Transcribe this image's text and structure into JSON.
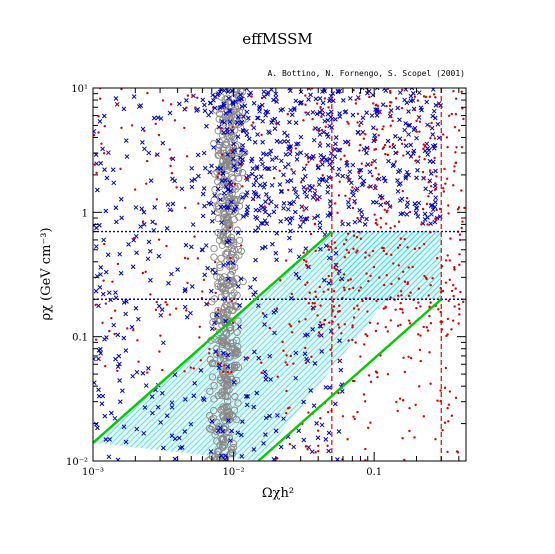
{
  "chart_data": {
    "type": "scatter",
    "title": "effMSSM",
    "subtitle": "A. Bottino, N. Fornengo, S. Scopel (2001)",
    "xlabel": "Ωχh²",
    "ylabel": "ρχ (GeV cm⁻³)",
    "xscale": "log",
    "yscale": "log",
    "xlim": [
      0.001,
      0.45
    ],
    "ylim": [
      0.01,
      10
    ],
    "xticks": [
      {
        "value": 0.001,
        "label": "10⁻³"
      },
      {
        "value": 0.01,
        "label": "10⁻²"
      },
      {
        "value": 0.1,
        "label": "0.1"
      }
    ],
    "yticks": [
      {
        "value": 0.01,
        "label": "10⁻²"
      },
      {
        "value": 0.1,
        "label": "0.1"
      },
      {
        "value": 1,
        "label": "1"
      },
      {
        "value": 10,
        "label": "10¹"
      }
    ],
    "reference_lines": {
      "horizontal_blue_dotted": [
        0.2,
        0.7
      ],
      "vertical_red_dashed": [
        0.05,
        0.3
      ]
    },
    "shaded_regions": [
      {
        "name": "cosmological-range",
        "x": [
          0.05,
          0.3
        ],
        "y": [
          0.2,
          0.7
        ],
        "color": "#00c8c8"
      },
      {
        "name": "rescaling-band",
        "x_low": [
          0.001,
          0.05
        ],
        "x_high": [
          0.015,
          0.3
        ],
        "y": [
          0.014,
          0.7
        ],
        "color": "#00c8c8"
      }
    ],
    "band_edges": [
      {
        "name": "upper-band-line",
        "points": [
          [
            0.001,
            0.014
          ],
          [
            0.05,
            0.7
          ]
        ],
        "color": "#00cc00"
      },
      {
        "name": "lower-band-line",
        "points": [
          [
            0.015,
            0.01
          ],
          [
            0.3,
            0.2
          ]
        ],
        "color": "#00cc00"
      }
    ],
    "series": [
      {
        "marker": "circle",
        "color": "#888888",
        "cluster": {
          "x_center": 0.0085,
          "x_spread": 0.0012,
          "y_range": [
            0.01,
            10
          ]
        }
      },
      {
        "marker": "x",
        "color": "#0000cc",
        "cluster": {
          "x_range": [
            0.001,
            0.3
          ],
          "y_range": [
            0.01,
            10
          ]
        }
      },
      {
        "marker": "dot",
        "color": "#dd0000",
        "cluster": {
          "x_range": [
            0.001,
            0.45
          ],
          "y_range": [
            0.01,
            10
          ]
        }
      }
    ],
    "grid": false,
    "colors": {
      "frame": "#000000",
      "reference_blue": "#0000cc",
      "reference_red": "#dd0000",
      "band_green": "#00cc00",
      "shade_cyan": "#00c8c8"
    }
  }
}
